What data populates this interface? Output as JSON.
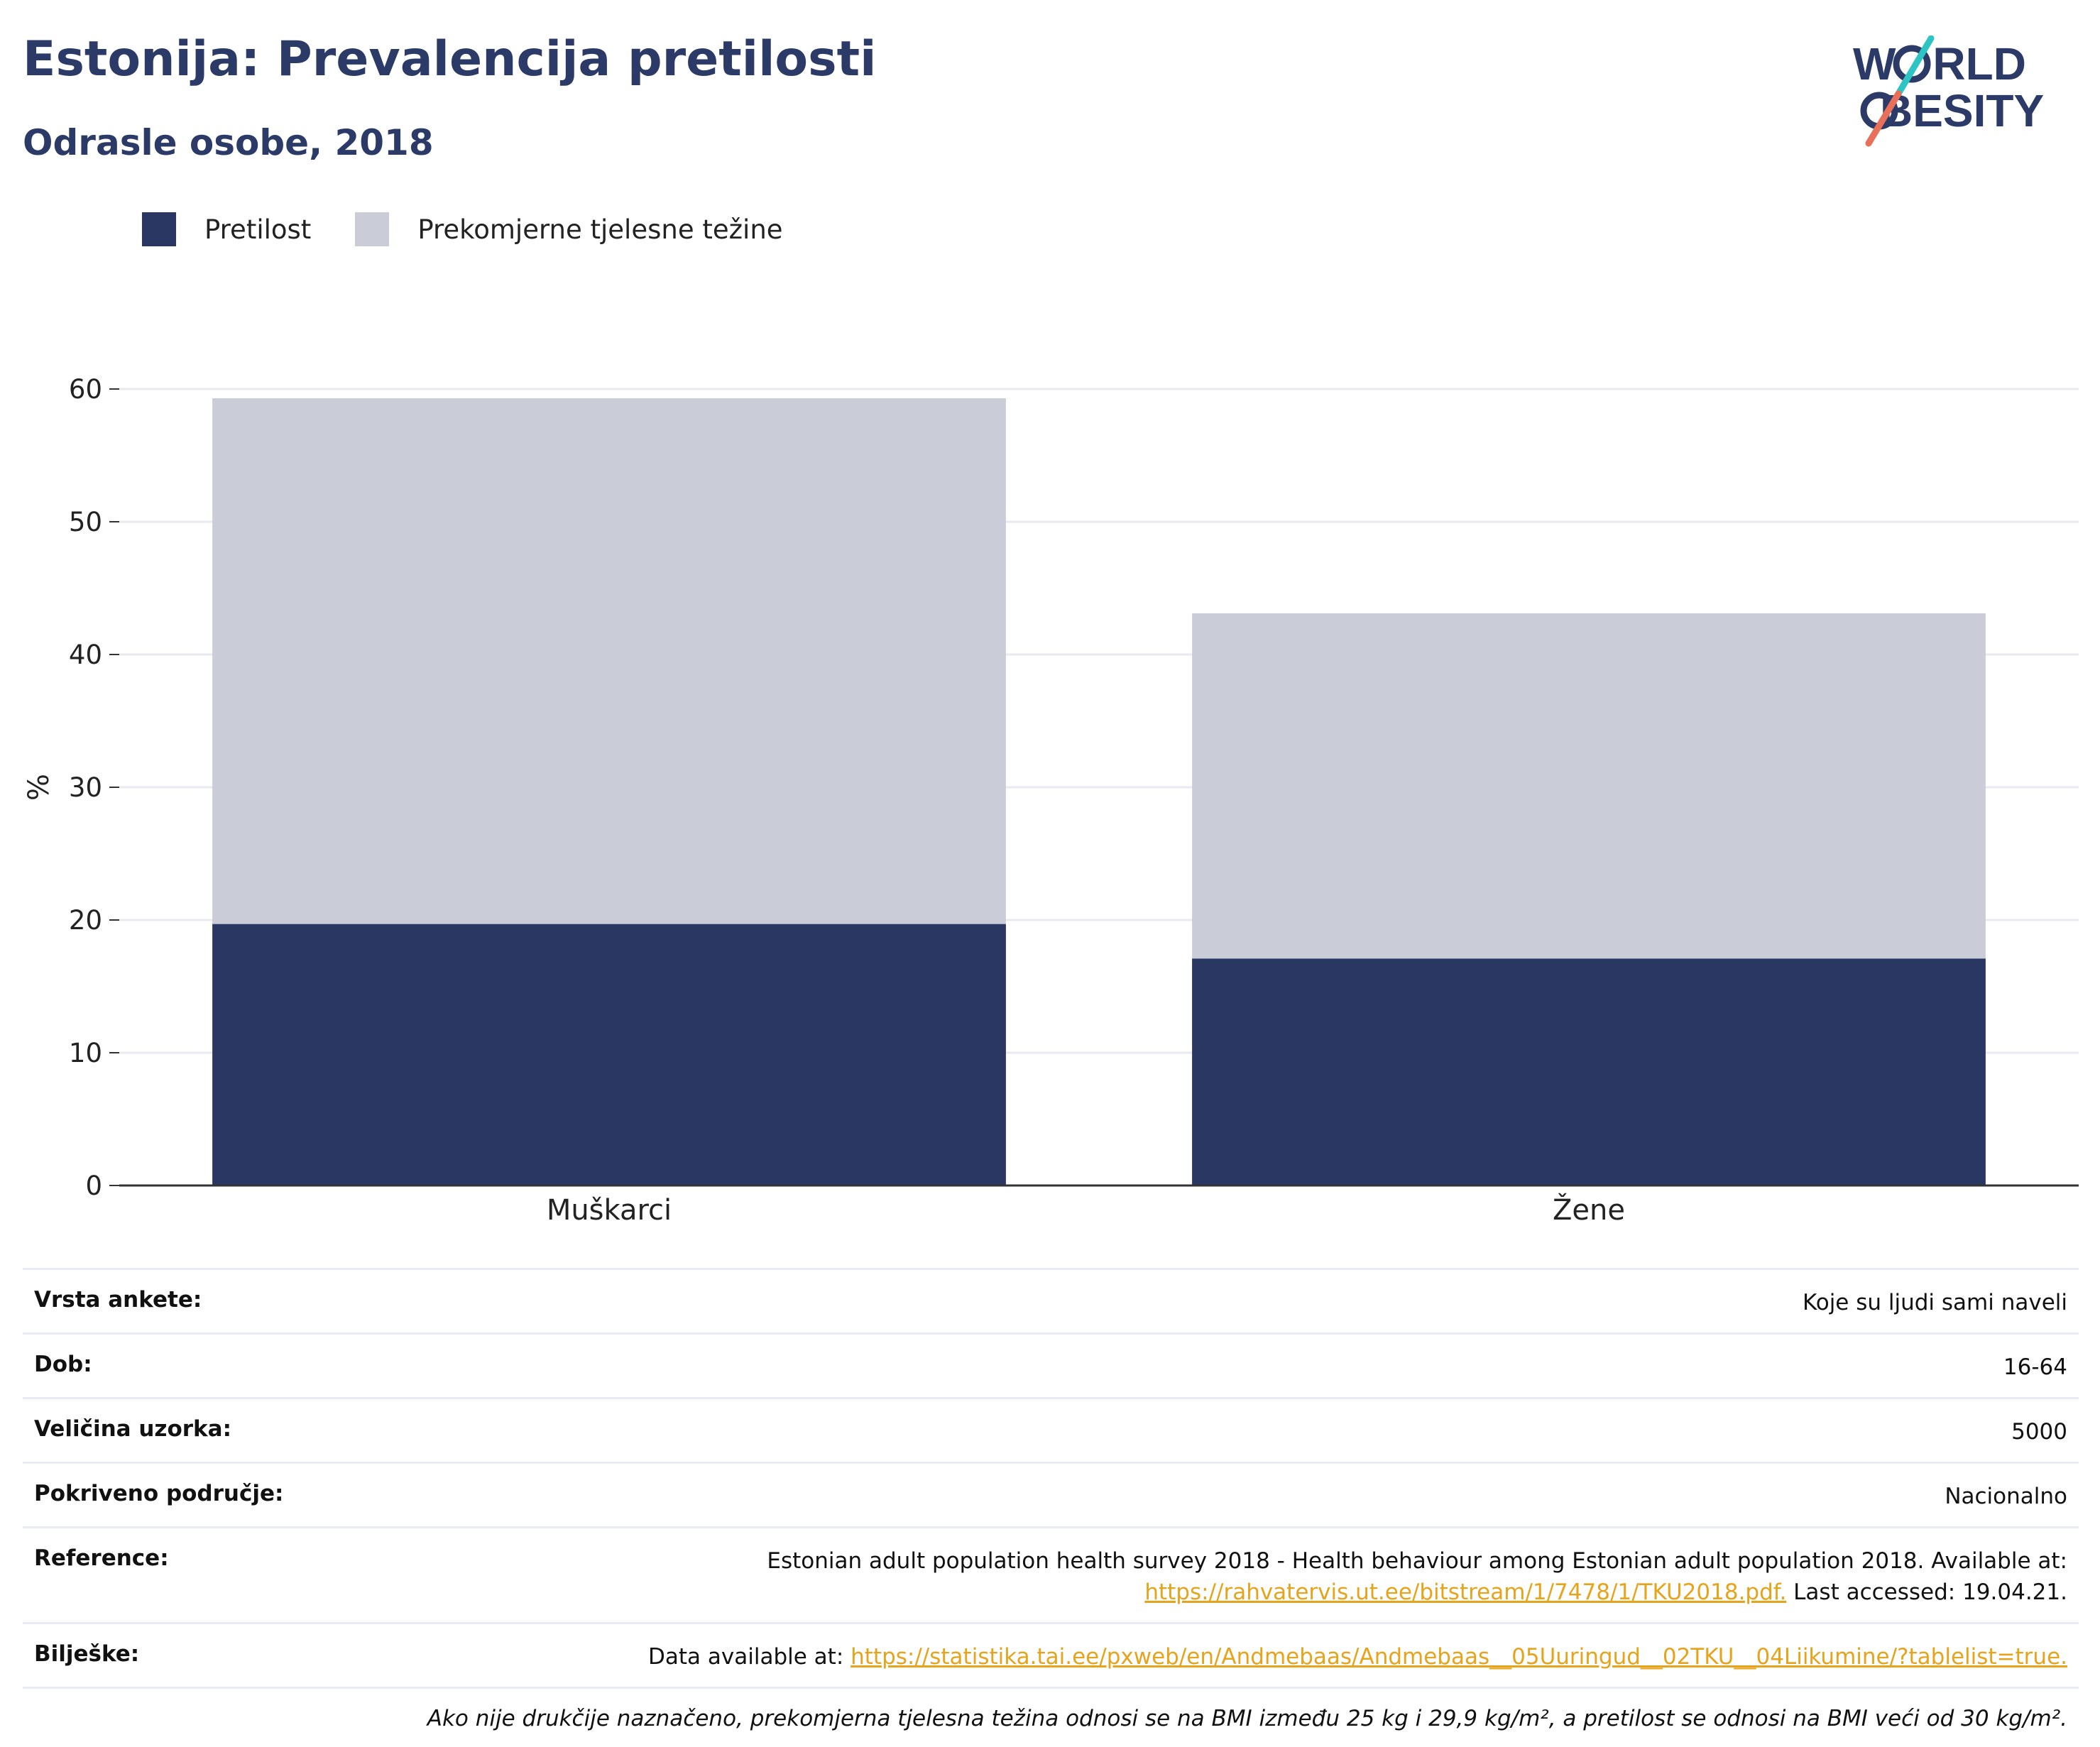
{
  "header": {
    "title": "Estonija: Prevalencija pretilosti",
    "subtitle": "Odrasle osobe, 2018"
  },
  "logo": {
    "line1_prefix": "W",
    "line1_suffix": "RLD",
    "line2_prefix": "",
    "line2_suffix": "BESITY",
    "slash_colors": [
      "#2ec4c4",
      "#e8705a"
    ],
    "text_color": "#2b3a67"
  },
  "legend": {
    "items": [
      {
        "label": "Pretilost",
        "color": "#2b3763"
      },
      {
        "label": "Prekomjerne tjelesne težine",
        "color": "#cacdd8"
      }
    ]
  },
  "chart_data": {
    "type": "bar",
    "stacked": true,
    "categories": [
      "Muškarci",
      "Žene"
    ],
    "series": [
      {
        "name": "Pretilost",
        "values": [
          19.7,
          17.1
        ],
        "color": "#2b3763"
      },
      {
        "name": "Prekomjerne tjelesne težine",
        "values": [
          39.6,
          26.0
        ],
        "color": "#cacdd8"
      }
    ],
    "ylabel": "%",
    "ylim": [
      0,
      60
    ],
    "yticks": [
      0,
      10,
      20,
      30,
      40,
      50,
      60
    ],
    "grid": true,
    "legend_position": "top-left"
  },
  "info": {
    "rows": [
      {
        "label": "Vrsta ankete:",
        "value": "Koje su ljudi sami naveli"
      },
      {
        "label": "Dob:",
        "value": "16-64"
      },
      {
        "label": "Veličina uzorka:",
        "value": "5000"
      },
      {
        "label": "Pokriveno područje:",
        "value": "Nacionalno"
      }
    ],
    "reference": {
      "label": "Reference:",
      "text": "Estonian adult population health survey 2018 - Health behaviour among Estonian adult population 2018. Available at:",
      "link": "https://rahvatervis.ut.ee/bitstream/1/7478/1/TKU2018.pdf.",
      "suffix": " Last accessed: 19.04.21."
    },
    "notes": {
      "label": "Bilješke:",
      "prefix": "Data available at: ",
      "link": "https://statistika.tai.ee/pxweb/en/Andmebaas/Andmebaas__05Uuringud__02TKU__04Liikumine/?tablelist=true."
    },
    "footnote": "Ako nije drukčije naznačeno, prekomjerna tjelesna težina odnosi se na BMI između 25 kg i 29,9 kg/m², a pretilost se odnosi na BMI veći od 30 kg/m²."
  }
}
